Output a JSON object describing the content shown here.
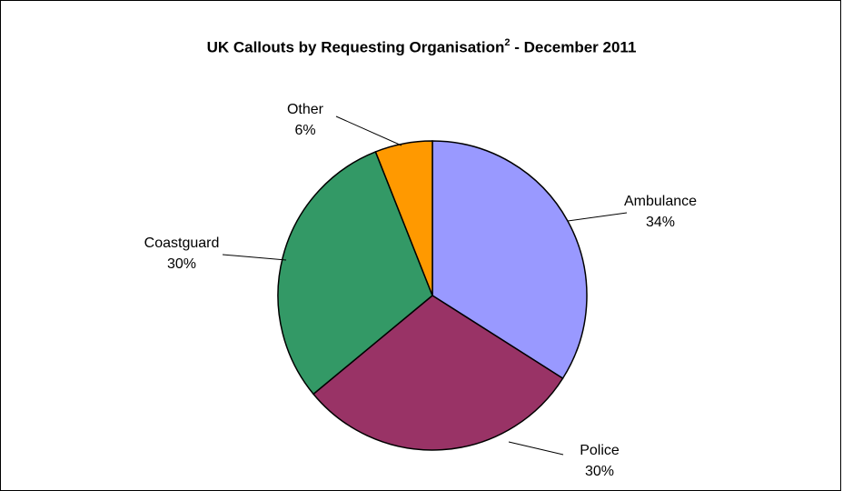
{
  "chart_data": {
    "type": "pie",
    "title": "UK Callouts by Requesting Organisation",
    "title_superscript": "2",
    "title_suffix": "- December 2011",
    "slices": [
      {
        "label": "Ambulance",
        "value": 34,
        "percent_label": "34%",
        "color": "#9999FF"
      },
      {
        "label": "Police",
        "value": 30,
        "percent_label": "30%",
        "color": "#993366"
      },
      {
        "label": "Coastguard",
        "value": 30,
        "percent_label": "30%",
        "color": "#339966"
      },
      {
        "label": "Other",
        "value": 6,
        "percent_label": "6%",
        "color": "#FF9900"
      }
    ],
    "legend": "none"
  }
}
